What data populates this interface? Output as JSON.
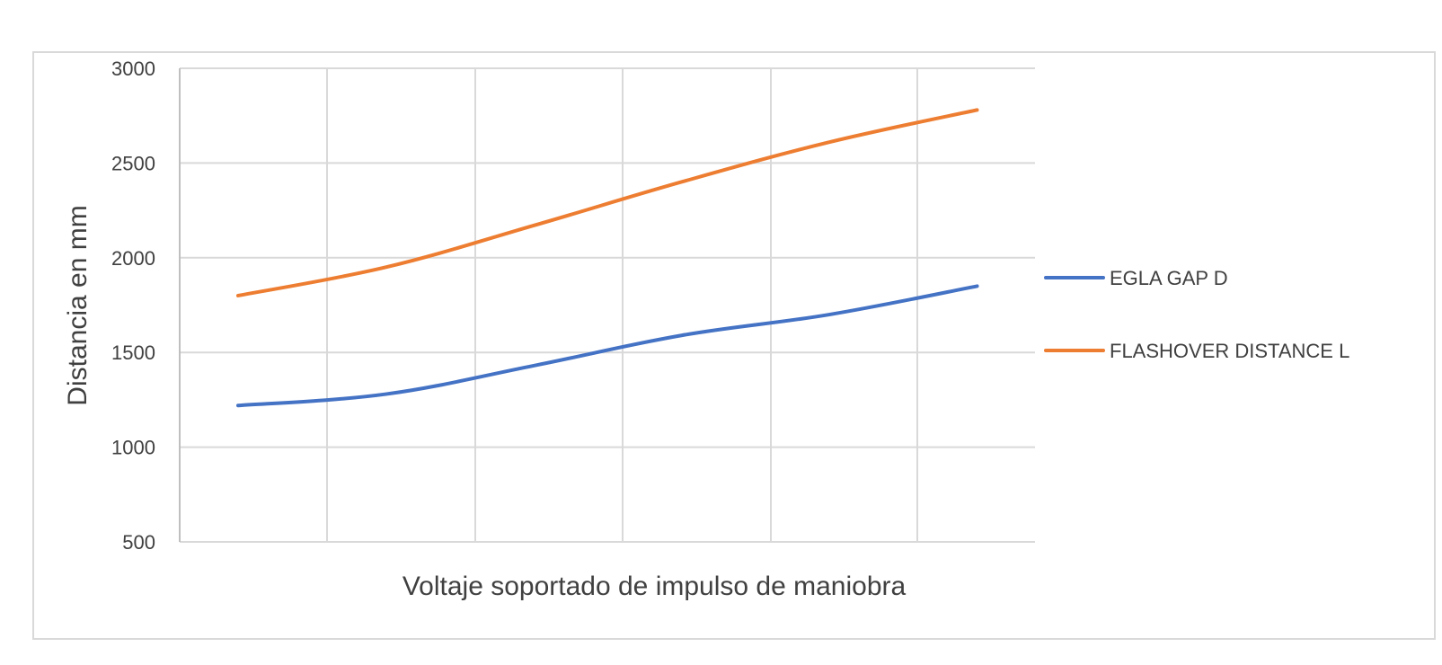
{
  "chart_data": {
    "type": "line",
    "title": "",
    "xlabel": "Voltaje soportado de impulso de maniobra",
    "ylabel": "Distancia en mm",
    "ylim": [
      500,
      3000
    ],
    "yticks": [
      500,
      1000,
      1500,
      2000,
      2500,
      3000
    ],
    "x": [
      1,
      2,
      3,
      4,
      5,
      6
    ],
    "grid": true,
    "legend_position": "right",
    "series": [
      {
        "name": "EGLA GAP D",
        "color": "#4472C4",
        "values": [
          1220,
          1280,
          1430,
          1590,
          1700,
          1850
        ]
      },
      {
        "name": "FLASHOVER DISTANCE L",
        "color": "#ED7D31",
        "values": [
          1800,
          1950,
          2170,
          2400,
          2610,
          2780
        ]
      }
    ]
  }
}
